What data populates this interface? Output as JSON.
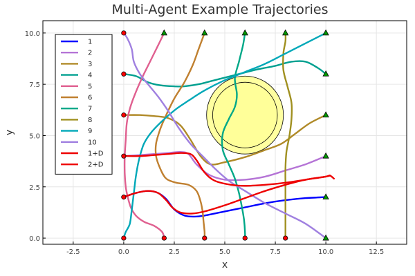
{
  "chart_data": {
    "type": "line",
    "title": "Multi-Agent Example Trajectories",
    "xlabel": "x",
    "ylabel": "y",
    "xlim": [
      -4,
      14
    ],
    "ylim": [
      -0.3,
      10.6
    ],
    "xticks": [
      -2.5,
      0.0,
      2.5,
      5.0,
      7.5,
      10.0,
      12.5
    ],
    "yticks": [
      0.0,
      2.5,
      5.0,
      7.5,
      10.0
    ],
    "xtick_labels": [
      "-2.5",
      "0.0",
      "2.5",
      "5.0",
      "7.5",
      "10.0",
      "12.5"
    ],
    "ytick_labels": [
      "0.0",
      "2.5",
      "5.0",
      "7.5",
      "10.0"
    ],
    "grid": true,
    "legend_position": "top-left",
    "obstacle": {
      "center": [
        6,
        6
      ],
      "outer_radius": 1.9,
      "inner_radius": 1.6,
      "outer_color": "#ffffa0",
      "inner_color": "#ffff99"
    },
    "start_marker_color": "#ff0000",
    "goal_marker_color": "#009900",
    "series": [
      {
        "name": "1",
        "color": "#0000ff",
        "points": [
          [
            0,
            2
          ],
          [
            0.6,
            2.2
          ],
          [
            1.2,
            2.3
          ],
          [
            1.7,
            2.2
          ],
          [
            2.1,
            1.9
          ],
          [
            2.5,
            1.4
          ],
          [
            3.0,
            1.1
          ],
          [
            3.5,
            1.05
          ],
          [
            4.0,
            1.1
          ],
          [
            5.0,
            1.3
          ],
          [
            6.0,
            1.5
          ],
          [
            7.0,
            1.7
          ],
          [
            8.0,
            1.85
          ],
          [
            9.0,
            1.95
          ],
          [
            10,
            2
          ]
        ]
      },
      {
        "name": "2",
        "color": "#b574d6",
        "points": [
          [
            0,
            4
          ],
          [
            0.8,
            4.05
          ],
          [
            1.5,
            4.1
          ],
          [
            2.2,
            4.15
          ],
          [
            2.8,
            4.2
          ],
          [
            3.2,
            4.1
          ],
          [
            3.6,
            3.6
          ],
          [
            4.2,
            3.1
          ],
          [
            5.0,
            2.85
          ],
          [
            6.0,
            2.85
          ],
          [
            7.0,
            3.0
          ],
          [
            8.0,
            3.3
          ],
          [
            9.0,
            3.6
          ],
          [
            10,
            4
          ]
        ]
      },
      {
        "name": "3",
        "color": "#b08a28",
        "points": [
          [
            0,
            6
          ],
          [
            0.8,
            6.0
          ],
          [
            1.5,
            5.95
          ],
          [
            2.2,
            5.85
          ],
          [
            2.8,
            5.5
          ],
          [
            3.3,
            4.8
          ],
          [
            3.8,
            4.0
          ],
          [
            4.3,
            3.6
          ],
          [
            5.0,
            3.7
          ],
          [
            6.0,
            3.95
          ],
          [
            7.0,
            4.3
          ],
          [
            7.8,
            4.6
          ],
          [
            8.5,
            5.1
          ],
          [
            9.2,
            5.6
          ],
          [
            10,
            6
          ]
        ]
      },
      {
        "name": "4",
        "color": "#00a090",
        "points": [
          [
            0,
            8
          ],
          [
            0.6,
            7.9
          ],
          [
            1.2,
            7.6
          ],
          [
            1.8,
            7.45
          ],
          [
            2.5,
            7.4
          ],
          [
            3.0,
            7.4
          ],
          [
            3.7,
            7.5
          ],
          [
            4.5,
            7.7
          ],
          [
            5.5,
            7.95
          ],
          [
            6.5,
            8.2
          ],
          [
            7.5,
            8.4
          ],
          [
            8.3,
            8.6
          ],
          [
            9.0,
            8.6
          ],
          [
            9.6,
            8.3
          ],
          [
            10,
            8
          ]
        ]
      },
      {
        "name": "5",
        "color": "#e06090",
        "points": [
          [
            2,
            0
          ],
          [
            1.9,
            0.3
          ],
          [
            1.5,
            0.6
          ],
          [
            1.0,
            0.8
          ],
          [
            0.6,
            1.1
          ],
          [
            0.35,
            1.5
          ],
          [
            0.2,
            2.0
          ],
          [
            0.1,
            2.5
          ],
          [
            0.05,
            3.2
          ],
          [
            0.05,
            4.0
          ],
          [
            0.1,
            4.8
          ],
          [
            0.15,
            5.6
          ],
          [
            0.3,
            6.3
          ],
          [
            0.55,
            7.0
          ],
          [
            0.9,
            7.8
          ],
          [
            1.3,
            8.6
          ],
          [
            1.7,
            9.4
          ],
          [
            2,
            10
          ]
        ]
      },
      {
        "name": "6",
        "color": "#c08030",
        "points": [
          [
            4,
            0
          ],
          [
            4,
            0.3
          ],
          [
            3.95,
            0.8
          ],
          [
            3.9,
            1.3
          ],
          [
            3.8,
            1.8
          ],
          [
            3.6,
            2.3
          ],
          [
            3.2,
            2.6
          ],
          [
            2.6,
            2.7
          ],
          [
            2.1,
            2.9
          ],
          [
            1.8,
            3.4
          ],
          [
            1.6,
            4.0
          ],
          [
            1.6,
            4.6
          ],
          [
            1.8,
            5.3
          ],
          [
            2.1,
            6.0
          ],
          [
            2.5,
            6.8
          ],
          [
            3.0,
            7.6
          ],
          [
            3.4,
            8.4
          ],
          [
            3.7,
            9.2
          ],
          [
            4,
            10
          ]
        ]
      },
      {
        "name": "7",
        "color": "#00a888",
        "points": [
          [
            6,
            0
          ],
          [
            6,
            0.3
          ],
          [
            5.95,
            0.9
          ],
          [
            5.85,
            1.5
          ],
          [
            5.7,
            2.2
          ],
          [
            5.5,
            2.9
          ],
          [
            5.2,
            3.6
          ],
          [
            4.9,
            4.3
          ],
          [
            4.9,
            5.1
          ],
          [
            5.2,
            5.8
          ],
          [
            5.5,
            6.4
          ],
          [
            5.6,
            7.0
          ],
          [
            5.5,
            7.8
          ],
          [
            5.7,
            8.6
          ],
          [
            5.9,
            9.4
          ],
          [
            6,
            10
          ]
        ]
      },
      {
        "name": "8",
        "color": "#a09020",
        "points": [
          [
            8,
            0
          ],
          [
            8,
            0.3
          ],
          [
            8.0,
            1.0
          ],
          [
            8.0,
            1.8
          ],
          [
            8.0,
            2.6
          ],
          [
            8.0,
            3.4
          ],
          [
            8.05,
            4.2
          ],
          [
            8.2,
            5.0
          ],
          [
            8.3,
            5.8
          ],
          [
            8.3,
            6.6
          ],
          [
            8.1,
            7.4
          ],
          [
            7.9,
            8.2
          ],
          [
            7.9,
            9.0
          ],
          [
            8.0,
            9.6
          ],
          [
            8,
            10
          ]
        ]
      },
      {
        "name": "9",
        "color": "#00a8b8",
        "points": [
          [
            0,
            0
          ],
          [
            0.1,
            0.3
          ],
          [
            0.3,
            0.7
          ],
          [
            0.4,
            1.4
          ],
          [
            0.5,
            2.2
          ],
          [
            0.6,
            3.0
          ],
          [
            0.75,
            3.8
          ],
          [
            1.0,
            4.6
          ],
          [
            1.4,
            5.2
          ],
          [
            2.0,
            5.8
          ],
          [
            2.6,
            6.3
          ],
          [
            3.2,
            6.7
          ],
          [
            4.0,
            7.2
          ],
          [
            5.0,
            7.7
          ],
          [
            6.0,
            8.1
          ],
          [
            7.0,
            8.5
          ],
          [
            8.0,
            9.0
          ],
          [
            9.0,
            9.5
          ],
          [
            10,
            10
          ]
        ]
      },
      {
        "name": "10",
        "color": "#a080e0",
        "points": [
          [
            0,
            10
          ],
          [
            0.2,
            9.7
          ],
          [
            0.4,
            9.2
          ],
          [
            0.5,
            8.6
          ],
          [
            0.8,
            8.0
          ],
          [
            1.2,
            7.5
          ],
          [
            1.7,
            6.9
          ],
          [
            2.2,
            6.2
          ],
          [
            2.7,
            5.4
          ],
          [
            3.3,
            4.6
          ],
          [
            3.9,
            4.0
          ],
          [
            4.5,
            3.4
          ],
          [
            5.2,
            2.8
          ],
          [
            6.0,
            2.3
          ],
          [
            7.0,
            1.7
          ],
          [
            8.0,
            1.2
          ],
          [
            9.0,
            0.7
          ],
          [
            10,
            0
          ]
        ]
      },
      {
        "name": "1+D",
        "color": "#ee0000",
        "points": [
          [
            0,
            2
          ],
          [
            0.6,
            2.2
          ],
          [
            1.2,
            2.3
          ],
          [
            1.7,
            2.2
          ],
          [
            2.1,
            1.85
          ],
          [
            2.4,
            1.5
          ],
          [
            2.8,
            1.25
          ],
          [
            3.4,
            1.2
          ],
          [
            4.0,
            1.3
          ],
          [
            5.0,
            1.6
          ],
          [
            6.0,
            1.95
          ],
          [
            7.0,
            2.3
          ],
          [
            8.0,
            2.6
          ],
          [
            9.0,
            2.85
          ],
          [
            10.0,
            3.0
          ],
          [
            10.2,
            3.05
          ],
          [
            10.4,
            2.9
          ]
        ]
      },
      {
        "name": "2+D",
        "color": "#ee0000",
        "points": [
          [
            0,
            4
          ],
          [
            0.8,
            4.0
          ],
          [
            1.5,
            4.05
          ],
          [
            2.2,
            4.1
          ],
          [
            2.8,
            4.15
          ],
          [
            3.3,
            4.1
          ],
          [
            3.6,
            3.8
          ],
          [
            4.0,
            3.2
          ],
          [
            4.5,
            2.8
          ],
          [
            5.3,
            2.6
          ],
          [
            6.0,
            2.55
          ],
          [
            7.0,
            2.6
          ],
          [
            8.0,
            2.7
          ],
          [
            9.0,
            2.85
          ],
          [
            10.0,
            3.0
          ],
          [
            10.2,
            3.05
          ]
        ]
      }
    ],
    "starts": [
      [
        0,
        0
      ],
      [
        0,
        2
      ],
      [
        0,
        4
      ],
      [
        0,
        6
      ],
      [
        0,
        8
      ],
      [
        0,
        10
      ],
      [
        2,
        0
      ],
      [
        4,
        0
      ],
      [
        6,
        0
      ],
      [
        8,
        0
      ]
    ],
    "goals": [
      [
        2,
        10
      ],
      [
        4,
        10
      ],
      [
        6,
        10
      ],
      [
        8,
        10
      ],
      [
        10,
        10
      ],
      [
        10,
        8
      ],
      [
        10,
        6
      ],
      [
        10,
        4
      ],
      [
        10,
        2
      ],
      [
        10,
        0
      ]
    ]
  }
}
